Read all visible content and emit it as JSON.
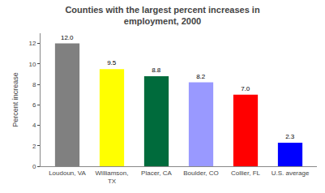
{
  "chart_data": {
    "type": "bar",
    "title": "Counties with the largest percent increases in\nemployment, 2000",
    "categories": [
      "Loudoun, VA",
      "Williamson,\nTX",
      "Placer, CA",
      "Boulder, CO",
      "Collier, FL",
      "U.S. average"
    ],
    "values": [
      12.0,
      9.5,
      8.8,
      8.2,
      7.0,
      2.3
    ],
    "value_labels": [
      "12.0",
      "9.5",
      "8.8",
      "8.2",
      "7.0",
      "2.3"
    ],
    "data_labels": true,
    "colors": [
      "#808080",
      "#ffff00",
      "#006b3c",
      "#9999ff",
      "#ff0000",
      "#0000ff"
    ],
    "ylabel": "Percent increase",
    "ylim": [
      0,
      13
    ],
    "yticks": [
      0,
      2,
      4,
      6,
      8,
      10,
      12
    ],
    "grid": false
  }
}
